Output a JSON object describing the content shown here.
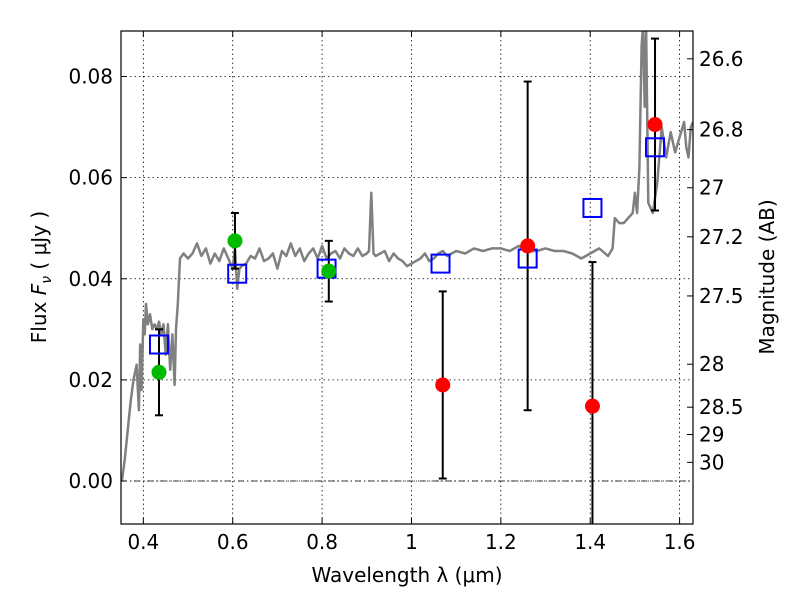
{
  "chart_data": {
    "type": "scatter",
    "xlabel": "Wavelength  λ (μm)",
    "ylabel_left": [
      "Flux  ",
      "F",
      "ν",
      "  (  μJy )"
    ],
    "ylabel_right": "Magnitude (AB)",
    "xlim": [
      0.35,
      1.63
    ],
    "ylim": [
      -0.0085,
      0.089
    ],
    "x_ticks": [
      0.4,
      0.6,
      0.8,
      1.0,
      1.2,
      1.4,
      1.6
    ],
    "x_tick_labels": [
      "0.4",
      "0.6",
      "0.8",
      "1",
      "1.2",
      "1.4",
      "1.6"
    ],
    "y_ticks": [
      0.0,
      0.02,
      0.04,
      0.06,
      0.08
    ],
    "y_tick_labels": [
      "0.00",
      "0.02",
      "0.04",
      "0.06",
      "0.08"
    ],
    "right_ticks": [
      {
        "label": "26.6",
        "flux": 0.0835
      },
      {
        "label": "26.8",
        "flux": 0.0695
      },
      {
        "label": "27",
        "flux": 0.058
      },
      {
        "label": "27.2",
        "flux": 0.0483
      },
      {
        "label": "27.5",
        "flux": 0.0366
      },
      {
        "label": "28",
        "flux": 0.0231
      },
      {
        "label": "28.5",
        "flux": 0.0146
      },
      {
        "label": "29",
        "flux": 0.0092
      },
      {
        "label": "30",
        "flux": 0.0037
      }
    ],
    "grid": true,
    "series": [
      {
        "name": "model_spectrum",
        "style": "line",
        "color": "#808080",
        "points": [
          [
            0.352,
            0.0
          ],
          [
            0.358,
            0.004
          ],
          [
            0.365,
            0.01
          ],
          [
            0.372,
            0.016
          ],
          [
            0.378,
            0.02
          ],
          [
            0.385,
            0.023
          ],
          [
            0.39,
            0.014
          ],
          [
            0.393,
            0.027
          ],
          [
            0.396,
            0.018
          ],
          [
            0.4,
            0.032
          ],
          [
            0.403,
            0.029
          ],
          [
            0.406,
            0.035
          ],
          [
            0.41,
            0.031
          ],
          [
            0.415,
            0.033
          ],
          [
            0.42,
            0.03
          ],
          [
            0.425,
            0.031
          ],
          [
            0.43,
            0.03
          ],
          [
            0.435,
            0.0315
          ],
          [
            0.44,
            0.029
          ],
          [
            0.445,
            0.031
          ],
          [
            0.45,
            0.025
          ],
          [
            0.455,
            0.031
          ],
          [
            0.46,
            0.022
          ],
          [
            0.465,
            0.029
          ],
          [
            0.47,
            0.019
          ],
          [
            0.473,
            0.03
          ],
          [
            0.477,
            0.035
          ],
          [
            0.482,
            0.044
          ],
          [
            0.49,
            0.045
          ],
          [
            0.5,
            0.044
          ],
          [
            0.51,
            0.045
          ],
          [
            0.52,
            0.047
          ],
          [
            0.53,
            0.0445
          ],
          [
            0.54,
            0.046
          ],
          [
            0.55,
            0.043
          ],
          [
            0.56,
            0.045
          ],
          [
            0.57,
            0.0435
          ],
          [
            0.58,
            0.046
          ],
          [
            0.59,
            0.044
          ],
          [
            0.6,
            0.042
          ],
          [
            0.605,
            0.046
          ],
          [
            0.61,
            0.038
          ],
          [
            0.615,
            0.042
          ],
          [
            0.62,
            0.0425
          ],
          [
            0.63,
            0.043
          ],
          [
            0.64,
            0.0445
          ],
          [
            0.65,
            0.044
          ],
          [
            0.66,
            0.046
          ],
          [
            0.67,
            0.0435
          ],
          [
            0.68,
            0.044
          ],
          [
            0.69,
            0.045
          ],
          [
            0.7,
            0.042
          ],
          [
            0.71,
            0.0455
          ],
          [
            0.72,
            0.0445
          ],
          [
            0.73,
            0.047
          ],
          [
            0.74,
            0.0445
          ],
          [
            0.75,
            0.046
          ],
          [
            0.76,
            0.0435
          ],
          [
            0.77,
            0.045
          ],
          [
            0.78,
            0.046
          ],
          [
            0.79,
            0.044
          ],
          [
            0.8,
            0.0465
          ],
          [
            0.81,
            0.044
          ],
          [
            0.82,
            0.045
          ],
          [
            0.83,
            0.0455
          ],
          [
            0.84,
            0.044
          ],
          [
            0.85,
            0.046
          ],
          [
            0.86,
            0.045
          ],
          [
            0.87,
            0.0445
          ],
          [
            0.88,
            0.046
          ],
          [
            0.89,
            0.0445
          ],
          [
            0.9,
            0.045
          ],
          [
            0.905,
            0.0455
          ],
          [
            0.91,
            0.057
          ],
          [
            0.915,
            0.045
          ],
          [
            0.92,
            0.0445
          ],
          [
            0.93,
            0.045
          ],
          [
            0.94,
            0.0455
          ],
          [
            0.95,
            0.0435
          ],
          [
            0.96,
            0.045
          ],
          [
            0.97,
            0.044
          ],
          [
            0.98,
            0.0435
          ],
          [
            0.99,
            0.0425
          ],
          [
            1.0,
            0.043
          ],
          [
            1.01,
            0.0435
          ],
          [
            1.02,
            0.044
          ],
          [
            1.03,
            0.045
          ],
          [
            1.04,
            0.0435
          ],
          [
            1.05,
            0.044
          ],
          [
            1.06,
            0.045
          ],
          [
            1.07,
            0.0455
          ],
          [
            1.08,
            0.0445
          ],
          [
            1.09,
            0.045
          ],
          [
            1.1,
            0.0455
          ],
          [
            1.12,
            0.045
          ],
          [
            1.14,
            0.046
          ],
          [
            1.16,
            0.0455
          ],
          [
            1.18,
            0.046
          ],
          [
            1.2,
            0.046
          ],
          [
            1.22,
            0.0455
          ],
          [
            1.24,
            0.0465
          ],
          [
            1.26,
            0.0455
          ],
          [
            1.28,
            0.0455
          ],
          [
            1.3,
            0.046
          ],
          [
            1.32,
            0.0455
          ],
          [
            1.34,
            0.0455
          ],
          [
            1.36,
            0.045
          ],
          [
            1.38,
            0.044
          ],
          [
            1.4,
            0.045
          ],
          [
            1.42,
            0.046
          ],
          [
            1.44,
            0.0445
          ],
          [
            1.45,
            0.046
          ],
          [
            1.455,
            0.052
          ],
          [
            1.465,
            0.051
          ],
          [
            1.475,
            0.051
          ],
          [
            1.485,
            0.052
          ],
          [
            1.495,
            0.053
          ],
          [
            1.5,
            0.057
          ],
          [
            1.505,
            0.053
          ],
          [
            1.51,
            0.062
          ],
          [
            1.515,
            0.086
          ],
          [
            1.518,
            0.09
          ],
          [
            1.522,
            0.074
          ],
          [
            1.525,
            0.09
          ],
          [
            1.53,
            0.055
          ],
          [
            1.54,
            0.053
          ],
          [
            1.55,
            0.059
          ],
          [
            1.56,
            0.07
          ],
          [
            1.57,
            0.064
          ],
          [
            1.58,
            0.069
          ],
          [
            1.59,
            0.065
          ],
          [
            1.6,
            0.068
          ],
          [
            1.61,
            0.071
          ],
          [
            1.615,
            0.066
          ],
          [
            1.62,
            0.064
          ],
          [
            1.625,
            0.07
          ],
          [
            1.63,
            0.071
          ]
        ]
      },
      {
        "name": "model_photometry",
        "style": "open-square",
        "color": "#0000ff",
        "points": [
          [
            0.435,
            0.027
          ],
          [
            0.61,
            0.041
          ],
          [
            0.81,
            0.042
          ],
          [
            1.065,
            0.043
          ],
          [
            1.26,
            0.044
          ],
          [
            1.405,
            0.054
          ],
          [
            1.545,
            0.066
          ]
        ]
      },
      {
        "name": "green_photometry",
        "style": "filled-circle",
        "color": "#00bb00",
        "points": [
          [
            0.435,
            0.0215
          ],
          [
            0.605,
            0.0475
          ],
          [
            0.815,
            0.0415
          ]
        ],
        "yerr_low": [
          0.0085,
          0.0055,
          0.006
        ],
        "yerr_high": [
          0.0085,
          0.0055,
          0.006
        ]
      },
      {
        "name": "red_photometry",
        "style": "filled-circle",
        "color": "#ff0000",
        "points": [
          [
            1.07,
            0.019
          ],
          [
            1.26,
            0.0465
          ],
          [
            1.405,
            0.0148
          ],
          [
            1.545,
            0.0705
          ]
        ],
        "yerr_low": [
          0.0185,
          0.0325,
          0.0248,
          0.017
        ],
        "yerr_high": [
          0.0185,
          0.0325,
          0.0285,
          0.017
        ]
      }
    ]
  }
}
